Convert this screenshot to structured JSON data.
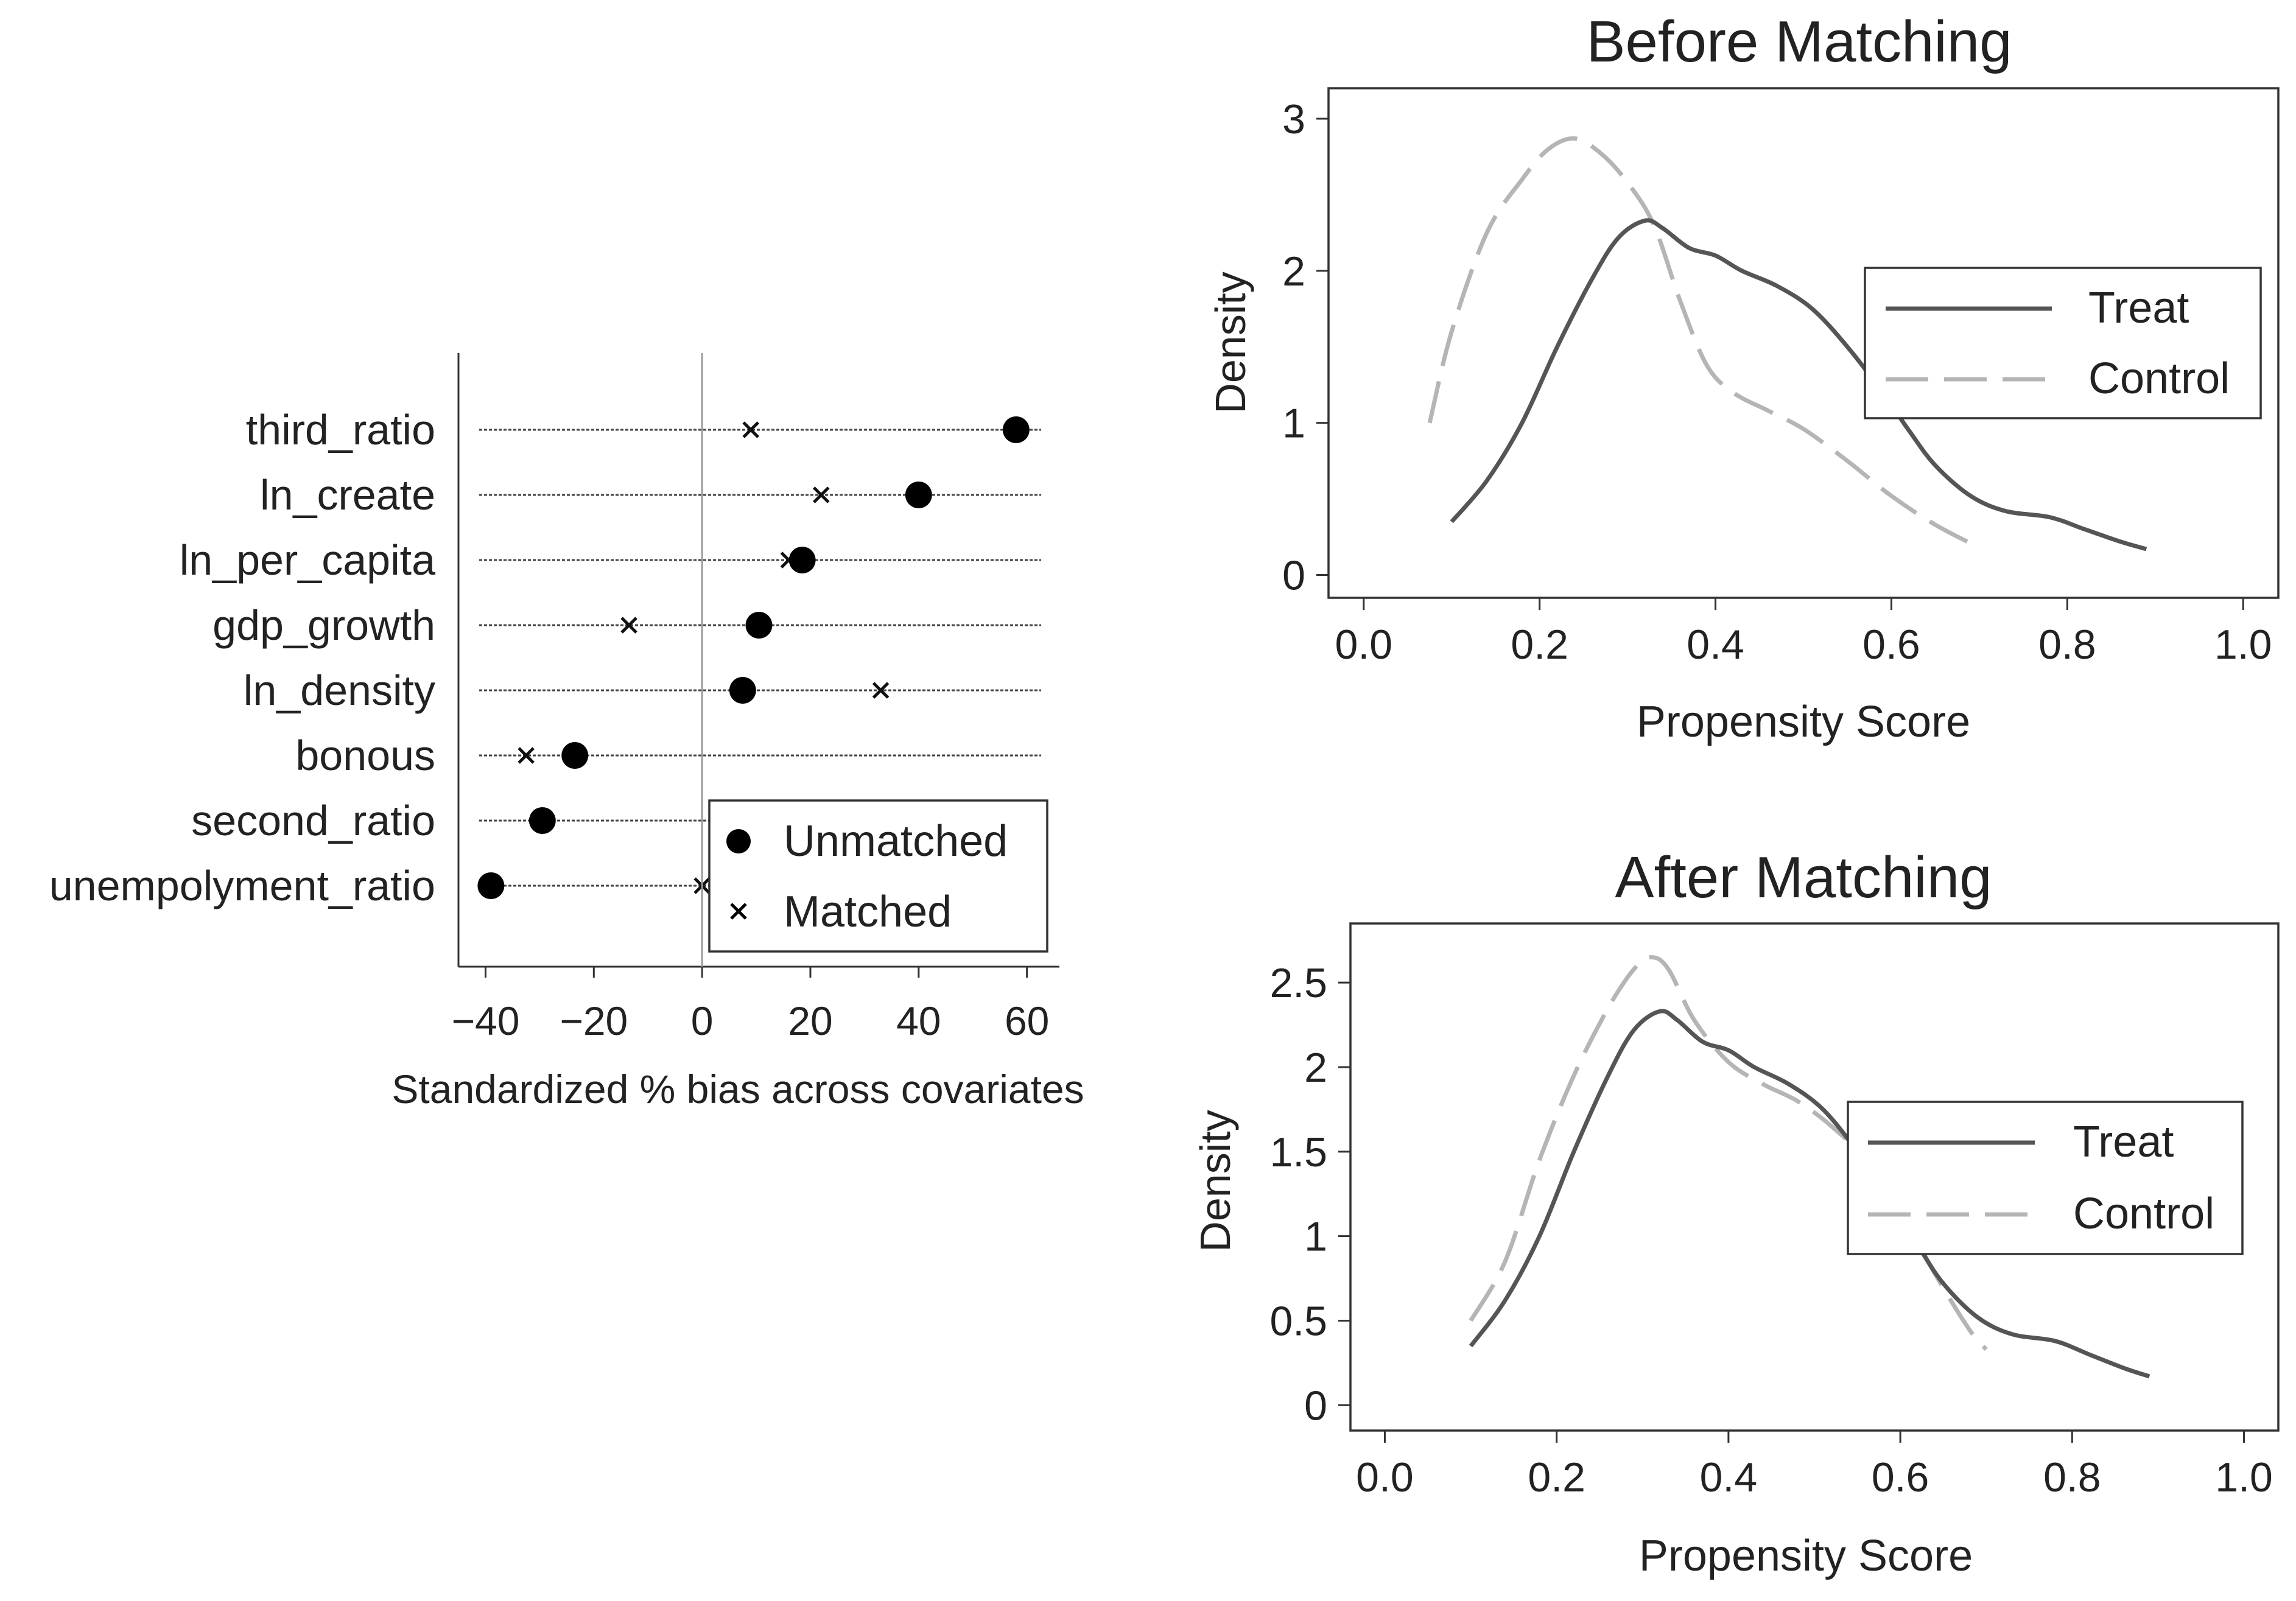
{
  "chart_data": [
    {
      "type": "scatter",
      "name": "covariate-balance",
      "title": "",
      "xlabel": "Standardized % bias across covariates",
      "ylabel": "",
      "xlim": [
        -45,
        66
      ],
      "xticks": [
        -40,
        -20,
        0,
        20,
        40,
        60
      ],
      "xtick_labels": [
        "−40",
        "−20",
        "0",
        "20",
        "40",
        "60"
      ],
      "categories": [
        "third_ratio",
        "ln_create",
        "ln_per_capita",
        "gdp_growth",
        "ln_density",
        "bonous",
        "second_ratio",
        "unempolyment_ratio"
      ],
      "series": [
        {
          "name": "Unmatched",
          "marker": "circle",
          "values": [
            58,
            40,
            18.5,
            10.5,
            7.5,
            -23.5,
            -29.5,
            -39
          ]
        },
        {
          "name": "Matched",
          "marker": "x",
          "values": [
            9,
            22,
            16,
            -13.5,
            33,
            -32.5,
            -30,
            0
          ]
        }
      ],
      "legend": {
        "position": "bottom-right",
        "entries": [
          "Unmatched",
          "Matched"
        ]
      }
    },
    {
      "type": "line",
      "name": "before-matching",
      "title": "Before Matching",
      "xlabel": "Propensity Score",
      "ylabel": "Density",
      "xlim": [
        -0.04,
        1.04
      ],
      "ylim": [
        -0.15,
        3.2
      ],
      "xticks": [
        0,
        0.2,
        0.4,
        0.6,
        0.8,
        1
      ],
      "xtick_labels": [
        "0.0",
        "0.2",
        "0.4",
        "0.6",
        "0.8",
        "1.0"
      ],
      "yticks": [
        0,
        1,
        2,
        3
      ],
      "ytick_labels": [
        "0",
        "1",
        "2",
        "3"
      ],
      "series": [
        {
          "name": "Treat",
          "style": "solid",
          "color": "#555555",
          "x": [
            0.1,
            0.14,
            0.18,
            0.22,
            0.26,
            0.29,
            0.32,
            0.34,
            0.37,
            0.4,
            0.43,
            0.47,
            0.51,
            0.55,
            0.59,
            0.62,
            0.65,
            0.69,
            0.73,
            0.78,
            0.82,
            0.86,
            0.89
          ],
          "y": [
            0.35,
            0.62,
            1.0,
            1.5,
            1.95,
            2.22,
            2.33,
            2.28,
            2.15,
            2.1,
            2.0,
            1.9,
            1.75,
            1.5,
            1.2,
            0.95,
            0.72,
            0.52,
            0.42,
            0.38,
            0.3,
            0.22,
            0.17
          ]
        },
        {
          "name": "Control",
          "style": "dashed",
          "color": "#b5b5b5",
          "x": [
            0.075,
            0.1,
            0.14,
            0.18,
            0.21,
            0.24,
            0.27,
            0.3,
            0.33,
            0.36,
            0.39,
            0.42,
            0.46,
            0.5,
            0.55,
            0.6,
            0.65,
            0.7
          ],
          "y": [
            1.0,
            1.6,
            2.25,
            2.6,
            2.8,
            2.87,
            2.77,
            2.58,
            2.3,
            1.8,
            1.38,
            1.2,
            1.08,
            0.96,
            0.75,
            0.52,
            0.33,
            0.18
          ]
        }
      ],
      "legend": {
        "position": "top-right",
        "entries": [
          "Treat",
          "Control"
        ]
      }
    },
    {
      "type": "line",
      "name": "after-matching",
      "title": "After Matching",
      "xlabel": "Propensity Score",
      "ylabel": "Density",
      "xlim": [
        -0.04,
        1.04
      ],
      "ylim": [
        -0.15,
        2.85
      ],
      "xticks": [
        0,
        0.2,
        0.4,
        0.6,
        0.8,
        1
      ],
      "xtick_labels": [
        "0.0",
        "0.2",
        "0.4",
        "0.6",
        "0.8",
        "1.0"
      ],
      "yticks": [
        0,
        0.5,
        1,
        1.5,
        2,
        2.5
      ],
      "ytick_labels": [
        "0",
        "0.5",
        "1",
        "1.5",
        "2",
        "2.5"
      ],
      "series": [
        {
          "name": "Treat",
          "style": "solid",
          "color": "#555555",
          "x": [
            0.1,
            0.14,
            0.18,
            0.22,
            0.26,
            0.29,
            0.32,
            0.34,
            0.37,
            0.4,
            0.43,
            0.47,
            0.51,
            0.55,
            0.59,
            0.62,
            0.65,
            0.69,
            0.73,
            0.78,
            0.82,
            0.86,
            0.89
          ],
          "y": [
            0.35,
            0.62,
            1.0,
            1.5,
            1.95,
            2.22,
            2.33,
            2.28,
            2.15,
            2.1,
            2.0,
            1.9,
            1.75,
            1.5,
            1.2,
            0.95,
            0.72,
            0.52,
            0.42,
            0.38,
            0.3,
            0.22,
            0.17
          ]
        },
        {
          "name": "Control",
          "style": "dashed",
          "color": "#b5b5b5",
          "x": [
            0.1,
            0.14,
            0.18,
            0.22,
            0.26,
            0.29,
            0.31,
            0.33,
            0.36,
            0.4,
            0.44,
            0.48,
            0.52,
            0.56,
            0.6,
            0.64,
            0.68,
            0.7
          ],
          "y": [
            0.5,
            0.85,
            1.45,
            1.95,
            2.35,
            2.58,
            2.65,
            2.58,
            2.28,
            2.03,
            1.9,
            1.8,
            1.65,
            1.45,
            1.15,
            0.78,
            0.45,
            0.33
          ]
        }
      ],
      "legend": {
        "position": "top-right",
        "entries": [
          "Treat",
          "Control"
        ]
      }
    }
  ]
}
